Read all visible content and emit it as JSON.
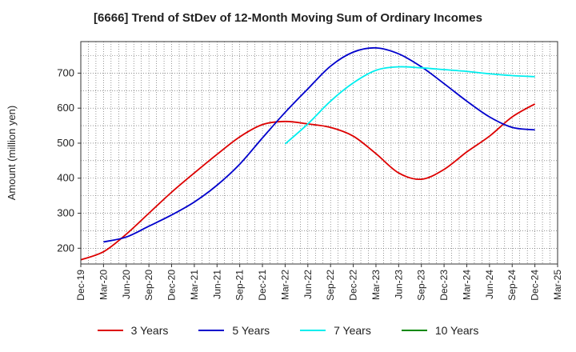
{
  "chart_data": {
    "type": "line",
    "title": "[6666]  Trend of StDev of 12-Month Moving Sum of Ordinary Incomes",
    "xlabel": "",
    "ylabel": "Amount (million yen)",
    "categories": [
      "Dec-19",
      "Mar-20",
      "Jun-20",
      "Sep-20",
      "Dec-20",
      "Mar-21",
      "Jun-21",
      "Sep-21",
      "Dec-21",
      "Mar-22",
      "Jun-22",
      "Sep-22",
      "Dec-22",
      "Mar-23",
      "Jun-23",
      "Sep-23",
      "Dec-23",
      "Mar-24",
      "Jun-24",
      "Sep-24",
      "Dec-24",
      "Mar-25"
    ],
    "yticks": [
      200,
      300,
      400,
      500,
      600,
      700
    ],
    "ylim": [
      155,
      790
    ],
    "series": [
      {
        "name": "3 Years",
        "color": "#dd0000",
        "values": [
          167,
          190,
          240,
          300,
          360,
          415,
          468,
          518,
          553,
          562,
          555,
          545,
          520,
          470,
          415,
          397,
          425,
          475,
          520,
          575,
          612,
          null
        ]
      },
      {
        "name": "5 Years",
        "color": "#0000cc",
        "values": [
          null,
          218,
          232,
          263,
          295,
          332,
          380,
          440,
          515,
          588,
          655,
          720,
          760,
          772,
          755,
          718,
          670,
          620,
          575,
          545,
          538,
          null
        ]
      },
      {
        "name": "7 Years",
        "color": "#00eeee",
        "values": [
          null,
          null,
          null,
          null,
          null,
          null,
          null,
          null,
          null,
          498,
          555,
          620,
          672,
          708,
          718,
          715,
          710,
          705,
          698,
          693,
          690,
          null
        ]
      },
      {
        "name": "10 Years",
        "color": "#008800",
        "values": [
          null,
          null,
          null,
          null,
          null,
          null,
          null,
          null,
          null,
          null,
          null,
          null,
          null,
          null,
          null,
          null,
          null,
          null,
          null,
          null,
          null,
          null
        ]
      }
    ]
  }
}
